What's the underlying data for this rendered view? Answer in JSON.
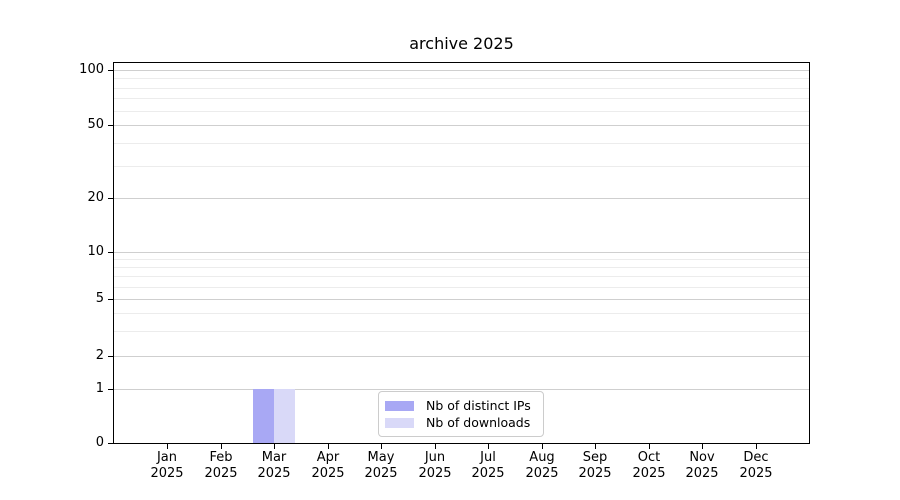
{
  "chart_data": {
    "type": "bar",
    "title": "archive 2025",
    "x_tick_labels": [
      {
        "month": "Jan",
        "year": "2025"
      },
      {
        "month": "Feb",
        "year": "2025"
      },
      {
        "month": "Mar",
        "year": "2025"
      },
      {
        "month": "Apr",
        "year": "2025"
      },
      {
        "month": "May",
        "year": "2025"
      },
      {
        "month": "Jun",
        "year": "2025"
      },
      {
        "month": "Jul",
        "year": "2025"
      },
      {
        "month": "Aug",
        "year": "2025"
      },
      {
        "month": "Sep",
        "year": "2025"
      },
      {
        "month": "Oct",
        "year": "2025"
      },
      {
        "month": "Nov",
        "year": "2025"
      },
      {
        "month": "Dec",
        "year": "2025"
      }
    ],
    "series": [
      {
        "name": "Nb of distinct IPs",
        "color": "#a8a8f4",
        "values": [
          0,
          0,
          1,
          0,
          0,
          0,
          0,
          0,
          0,
          0,
          0,
          0
        ]
      },
      {
        "name": "Nb of downloads",
        "color": "#d9d9f8",
        "values": [
          0,
          0,
          1,
          0,
          0,
          0,
          0,
          0,
          0,
          0,
          0,
          0
        ]
      }
    ],
    "y_axis": {
      "scale": "symlog",
      "range": [
        0,
        100
      ],
      "ticks": [
        0,
        1,
        2,
        5,
        10,
        20,
        50,
        100
      ],
      "minor_gridlines": [
        3,
        4,
        6,
        7,
        8,
        9,
        30,
        40,
        60,
        70,
        80,
        90
      ]
    },
    "grid": "horizontal",
    "legend": {
      "position": "lower-center",
      "entries": [
        "Nb of distinct IPs",
        "Nb of downloads"
      ]
    },
    "colors": {
      "axis": "#000000",
      "text": "#000000",
      "major_grid": "#cfcfcf",
      "minor_grid": "#ececec",
      "background": "#ffffff"
    }
  }
}
